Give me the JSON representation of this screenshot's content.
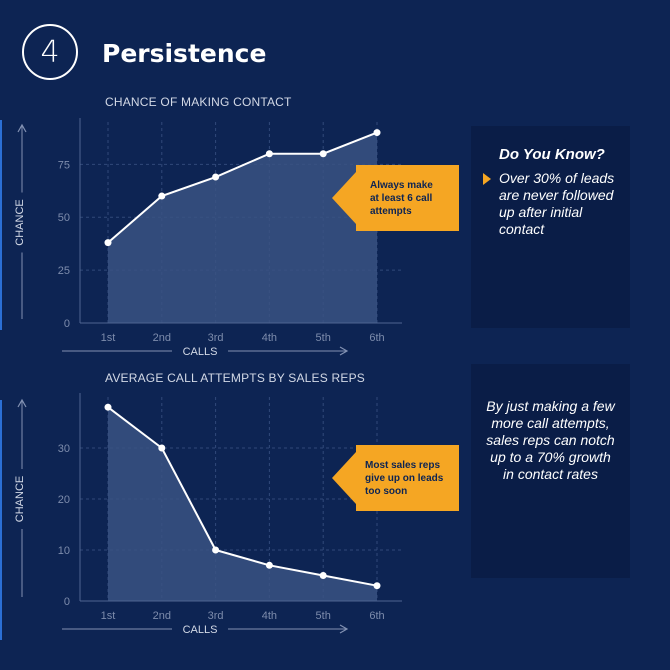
{
  "header": {
    "number": "4",
    "title": "Persistence"
  },
  "chart1": {
    "title": "CHANCE OF MAKING CONTACT"
  },
  "chart2": {
    "title": "AVERAGE CALL ATTEMPTS BY SALES REPS"
  },
  "callout1": {
    "text": "Always make at least 6 call attempts"
  },
  "callout2": {
    "text": "Most sales reps give up on leads too soon"
  },
  "know": {
    "title": "Do You Know?",
    "text": "Over 30% of leads are never followed up after initial contact"
  },
  "tip": {
    "text": "By just making a few more call attempts, sales reps can notch up to a 70% growth in contact rates"
  },
  "colors": {
    "background": "#0d2453",
    "panel": "#0a1d47",
    "accent": "#f5a623",
    "area": "#3a5283",
    "line": "#ffffff"
  },
  "chart_data": [
    {
      "type": "area",
      "title": "CHANCE OF MAKING CONTACT",
      "xlabel": "CALLS",
      "ylabel": "CHANCE",
      "categories": [
        "1st",
        "2nd",
        "3rd",
        "4th",
        "5th",
        "6th"
      ],
      "values": [
        38,
        60,
        69,
        80,
        80,
        90
      ],
      "yticks": [
        0,
        25,
        50,
        75
      ],
      "ylim": [
        0,
        95
      ],
      "grid": true
    },
    {
      "type": "area",
      "title": "AVERAGE CALL ATTEMPTS BY SALES REPS",
      "xlabel": "CALLS",
      "ylabel": "CHANCE",
      "categories": [
        "1st",
        "2nd",
        "3rd",
        "4th",
        "5th",
        "6th"
      ],
      "values": [
        38,
        30,
        10,
        7,
        5,
        3
      ],
      "yticks": [
        0,
        10,
        20,
        30
      ],
      "ylim": [
        0,
        40
      ],
      "grid": true
    }
  ]
}
